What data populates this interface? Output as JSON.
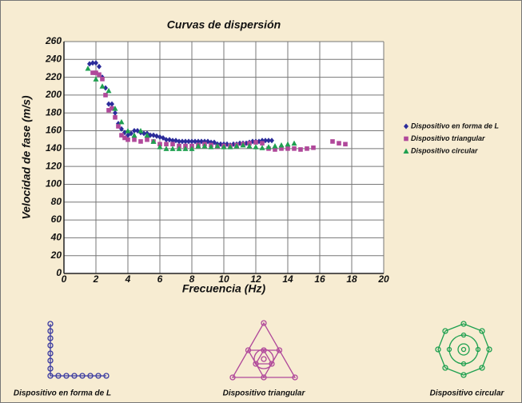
{
  "chart_data": {
    "type": "scatter",
    "title": "Curvas de dispersión",
    "x_label": "Frecuencia (Hz)",
    "y_label": "Velocidad de fase (m/s)",
    "xlim": [
      0,
      20
    ],
    "xticks": [
      0,
      2,
      4,
      6,
      8,
      10,
      12,
      14,
      16,
      18,
      20
    ],
    "ylim": [
      0,
      260
    ],
    "yticks": [
      0,
      20,
      40,
      60,
      80,
      100,
      120,
      140,
      160,
      180,
      200,
      220,
      240,
      260
    ],
    "grid": true,
    "legend": "right",
    "series": [
      {
        "name": "Dispositivo en forma de L",
        "color": "#2b2b9a",
        "marker": "diamond",
        "x": [
          1.6,
          1.8,
          2.0,
          2.2,
          2.4,
          2.6,
          2.8,
          3.0,
          3.2,
          3.4,
          3.6,
          3.8,
          4.0,
          4.2,
          4.4,
          4.6,
          4.8,
          5.0,
          5.2,
          5.4,
          5.6,
          5.8,
          6.0,
          6.2,
          6.4,
          6.6,
          6.8,
          7.0,
          7.2,
          7.4,
          7.6,
          7.8,
          8.0,
          8.2,
          8.4,
          8.6,
          8.8,
          9.0,
          9.2,
          9.4,
          9.6,
          9.8,
          10.0,
          10.2,
          10.4,
          10.6,
          10.8,
          11.0,
          11.2,
          11.4,
          11.6,
          11.8,
          12.0,
          12.2,
          12.4,
          12.6,
          12.8,
          13.0
        ],
        "values": [
          235,
          236,
          236,
          232,
          220,
          208,
          190,
          190,
          180,
          168,
          162,
          158,
          155,
          157,
          160,
          160,
          158,
          157,
          157,
          155,
          155,
          154,
          153,
          152,
          150,
          150,
          149,
          149,
          148,
          148,
          148,
          148,
          148,
          148,
          148,
          148,
          148,
          148,
          147,
          147,
          145,
          145,
          145,
          145,
          144,
          145,
          145,
          146,
          146,
          146,
          147,
          148,
          148,
          148,
          149,
          149,
          149,
          149
        ]
      },
      {
        "name": "Dispositivo triangular",
        "color": "#b0489a",
        "marker": "square",
        "x": [
          1.8,
          2.0,
          2.2,
          2.4,
          2.6,
          2.8,
          3.0,
          3.2,
          3.4,
          3.6,
          3.8,
          4.0,
          4.4,
          4.8,
          5.2,
          5.6,
          6.0,
          6.4,
          6.8,
          7.2,
          7.6,
          8.0,
          8.4,
          8.8,
          9.2,
          9.6,
          10.0,
          10.4,
          10.8,
          11.2,
          11.6,
          12.0,
          12.4,
          12.8,
          13.2,
          13.6,
          14.0,
          14.4,
          14.8,
          15.2,
          15.6,
          16.8,
          17.2,
          17.6
        ],
        "values": [
          225,
          225,
          223,
          218,
          200,
          183,
          185,
          175,
          165,
          155,
          152,
          150,
          150,
          148,
          150,
          148,
          145,
          145,
          145,
          143,
          143,
          143,
          144,
          145,
          144,
          142,
          143,
          143,
          144,
          145,
          146,
          147,
          146,
          140,
          139,
          140,
          140,
          140,
          139,
          140,
          141,
          148,
          146,
          145
        ]
      },
      {
        "name": "Dispositivo circular",
        "color": "#1fa050",
        "marker": "triangle",
        "x": [
          1.5,
          2.0,
          2.4,
          2.8,
          3.2,
          3.6,
          4.0,
          4.4,
          4.8,
          5.2,
          5.6,
          6.0,
          6.4,
          6.8,
          7.2,
          7.6,
          8.0,
          8.4,
          8.8,
          9.2,
          9.6,
          10.0,
          10.4,
          10.8,
          11.2,
          11.6,
          12.0,
          12.4,
          12.8,
          13.2,
          13.6,
          14.0,
          14.4
        ],
        "values": [
          230,
          218,
          210,
          205,
          185,
          170,
          160,
          155,
          160,
          155,
          148,
          142,
          140,
          140,
          140,
          140,
          140,
          143,
          143,
          142,
          143,
          142,
          142,
          143,
          144,
          143,
          142,
          141,
          142,
          143,
          144,
          145,
          146
        ]
      }
    ]
  },
  "diagrams": [
    {
      "label": "Dispositivo en forma de L"
    },
    {
      "label": "Dispositivo triangular"
    },
    {
      "label": "Dispositivo circular"
    }
  ]
}
